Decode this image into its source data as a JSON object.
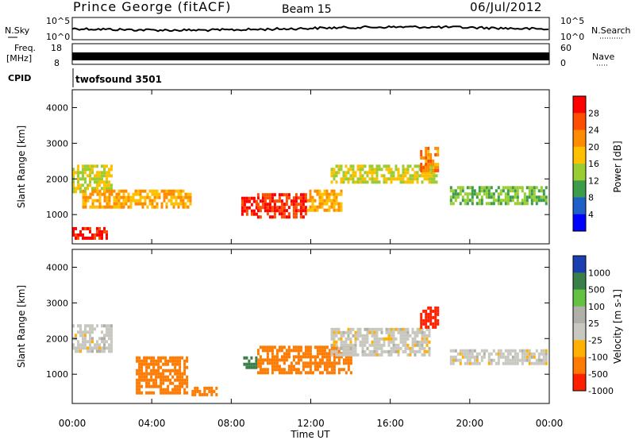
{
  "header": {
    "station": "Prince George (fitACF)",
    "beam": "Beam 15",
    "date": "06/Jul/2012"
  },
  "strip": {
    "nsky_label": "N.Sky",
    "nsky_ticks": [
      "10^5",
      "10^0"
    ],
    "nsearch_label": "N.Search",
    "nsearch_ticks": [
      "10^5",
      "10^0"
    ],
    "freq_label": "Freq.",
    "freq_unit": "[MHz]",
    "freq_ticks": [
      "18",
      "8"
    ],
    "nave_label": "Nave",
    "nave_ticks": [
      "60",
      "0"
    ],
    "cpid_label": "CPID",
    "cpid_value": "twofsound 3501"
  },
  "chart_data": [
    {
      "type": "heatmap",
      "name": "power",
      "title": "",
      "xlabel": "",
      "ylabel": "Slant Range [km]",
      "xlim": [
        0,
        24
      ],
      "ylim": [
        180,
        4500
      ],
      "y_ticks": [
        "1000",
        "2000",
        "3000",
        "4000"
      ],
      "colorbar": {
        "label": "Power [dB]",
        "ticks": [
          "28",
          "24",
          "20",
          "16",
          "12",
          "8",
          "4"
        ],
        "colors": [
          "#ff0000",
          "#ff4e00",
          "#ff8c00",
          "#ffc000",
          "#9acd32",
          "#3b9d4b",
          "#1e5fc8",
          "#0000ff"
        ]
      },
      "regions": [
        {
          "t0": 0.0,
          "t1": 1.7,
          "r0": 300,
          "r1": 650,
          "level": 28
        },
        {
          "t0": 0.0,
          "t1": 2.0,
          "r0": 1600,
          "r1": 2400,
          "level": 14
        },
        {
          "t0": 0.5,
          "t1": 6.0,
          "r0": 1250,
          "r1": 1700,
          "level": 18
        },
        {
          "t0": 8.5,
          "t1": 9.3,
          "r0": 1000,
          "r1": 1500,
          "level": 28
        },
        {
          "t0": 9.3,
          "t1": 11.8,
          "r0": 900,
          "r1": 1600,
          "level": 26
        },
        {
          "t0": 11.8,
          "t1": 13.5,
          "r0": 1100,
          "r1": 1700,
          "level": 18
        },
        {
          "t0": 13.0,
          "t1": 18.3,
          "r0": 1900,
          "r1": 2400,
          "level": 14
        },
        {
          "t0": 17.5,
          "t1": 18.4,
          "r0": 2200,
          "r1": 2900,
          "level": 20
        },
        {
          "t0": 19.0,
          "t1": 23.8,
          "r0": 1300,
          "r1": 1800,
          "level": 10
        }
      ]
    },
    {
      "type": "heatmap",
      "name": "velocity",
      "title": "",
      "xlabel": "Time UT",
      "ylabel": "Slant Range [km]",
      "xlim": [
        0,
        24
      ],
      "ylim": [
        180,
        4500
      ],
      "x_ticks": [
        "00:00",
        "04:00",
        "08:00",
        "12:00",
        "16:00",
        "20:00",
        "00:00"
      ],
      "y_ticks": [
        "1000",
        "2000",
        "3000",
        "4000"
      ],
      "colorbar": {
        "label": "Velocity [m s-1]",
        "ticks": [
          "1000",
          "500",
          "100",
          "25",
          "-25",
          "-100",
          "-500",
          "-1000"
        ],
        "colors": [
          "#1a3fb0",
          "#3a7f4a",
          "#63c244",
          "#b0b0a8",
          "#c8c8c0",
          "#ffb000",
          "#ff7a00",
          "#ff2000"
        ]
      },
      "regions": [
        {
          "t0": 0.0,
          "t1": 2.0,
          "r0": 1600,
          "r1": 2400,
          "level": 0
        },
        {
          "t0": 3.2,
          "t1": 5.8,
          "r0": 500,
          "r1": 1500,
          "level": -150
        },
        {
          "t0": 6.0,
          "t1": 7.2,
          "r0": 400,
          "r1": 650,
          "level": -150
        },
        {
          "t0": 8.6,
          "t1": 9.3,
          "r0": 1200,
          "r1": 1500,
          "level": 600
        },
        {
          "t0": 9.3,
          "t1": 14.0,
          "r0": 1000,
          "r1": 1800,
          "level": -200
        },
        {
          "t0": 13.0,
          "t1": 18.0,
          "r0": 1500,
          "r1": 2300,
          "level": 0
        },
        {
          "t0": 17.5,
          "t1": 18.4,
          "r0": 2300,
          "r1": 2900,
          "level": -700
        },
        {
          "t0": 19.0,
          "t1": 23.8,
          "r0": 1300,
          "r1": 1700,
          "level": 0
        }
      ]
    }
  ]
}
